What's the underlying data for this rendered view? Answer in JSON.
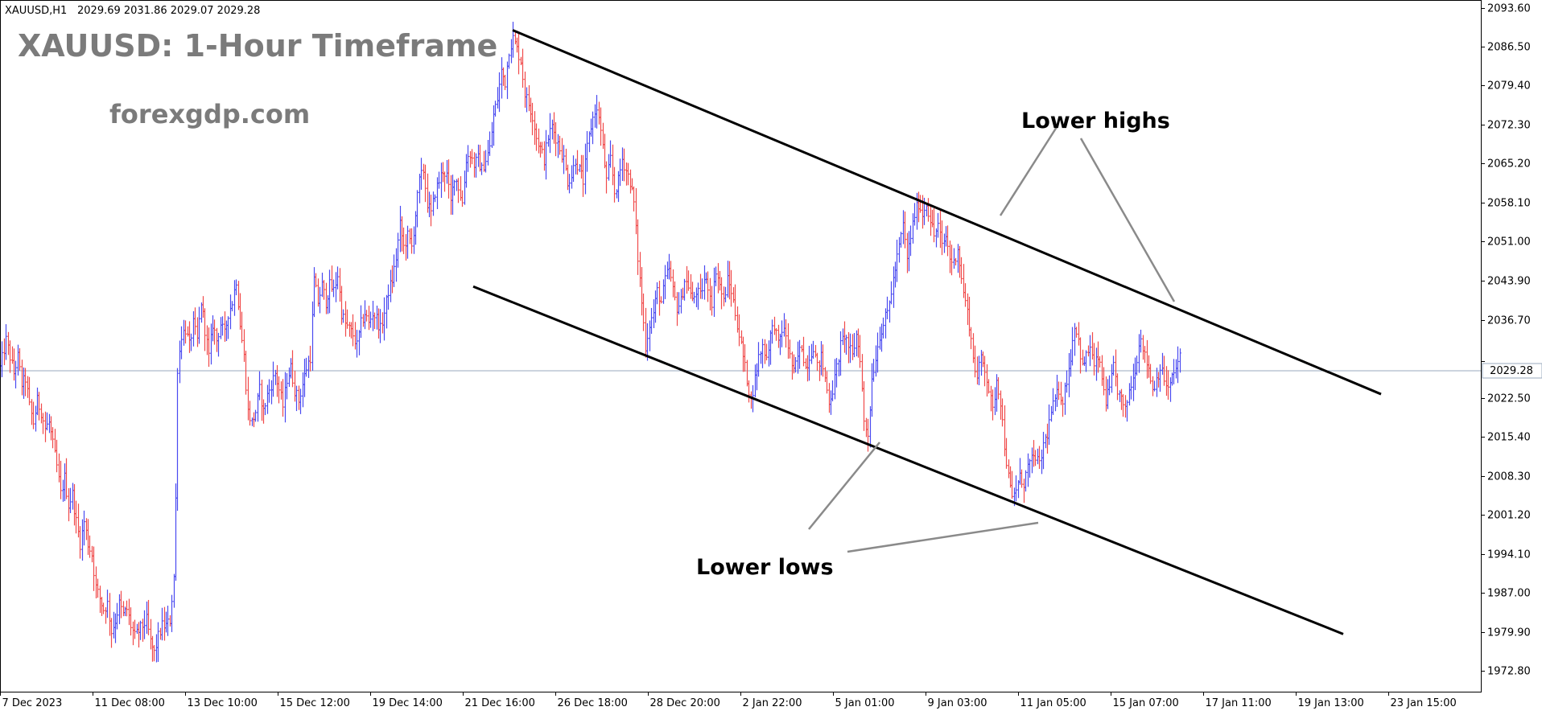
{
  "header": {
    "symbol": "XAUUSD,H1",
    "ohlc": "2029.69 2031.86 2029.07 2029.28"
  },
  "title": "XAUUSD: 1-Hour Timeframe",
  "website": "forexgdp.com",
  "annotations": {
    "lower_highs": "Lower highs",
    "lower_lows": "Lower lows"
  },
  "colors": {
    "bull": "#4a4af0",
    "bear": "#f04a4a",
    "grid": "#e6e6e6",
    "current_price_line": "#9aa9bd",
    "channel": "#000000",
    "annotation_arrow": "#8a8a8a"
  },
  "chart_data": {
    "type": "candlestick",
    "symbol": "XAUUSD",
    "timeframe": "H1",
    "current_price": 2029.28,
    "ylim": [
      1969.0,
      2095.0
    ],
    "y_ticks": [
      2093.6,
      2086.5,
      2079.4,
      2072.3,
      2065.2,
      2058.1,
      2051.0,
      2043.9,
      2036.7,
      2029.28,
      2022.5,
      2015.4,
      2008.3,
      2001.2,
      1994.1,
      1987.0,
      1979.9,
      1972.8
    ],
    "y_tick_labels": [
      "2093.60",
      "2086.50",
      "2079.40",
      "2072.30",
      "2065.20",
      "2058.10",
      "2051.00",
      "2043.90",
      "2036.70",
      "2029.28",
      "2022.50",
      "2015.40",
      "2008.30",
      "2001.20",
      "1994.10",
      "1987.00",
      "1979.90",
      "1972.80"
    ],
    "x_ticks": [
      "7 Dec 2023",
      "11 Dec 08:00",
      "13 Dec 10:00",
      "15 Dec 12:00",
      "19 Dec 14:00",
      "21 Dec 16:00",
      "26 Dec 18:00",
      "28 Dec 20:00",
      "2 Jan 22:00",
      "5 Jan 01:00",
      "9 Jan 03:00",
      "11 Jan 05:00",
      "15 Jan 07:00",
      "17 Jan 11:00",
      "19 Jan 13:00",
      "23 Jan 15:00"
    ],
    "path": [
      [
        0,
        2028
      ],
      [
        6,
        2033
      ],
      [
        10,
        2030
      ],
      [
        14,
        2027
      ],
      [
        18,
        2030
      ],
      [
        22,
        2025
      ],
      [
        26,
        2026
      ],
      [
        30,
        2021
      ],
      [
        34,
        2018
      ],
      [
        38,
        2022
      ],
      [
        42,
        2020
      ],
      [
        46,
        2017
      ],
      [
        50,
        2018
      ],
      [
        54,
        2014
      ],
      [
        58,
        2010
      ],
      [
        62,
        2005
      ],
      [
        66,
        2008
      ],
      [
        70,
        2003
      ],
      [
        74,
        2005
      ],
      [
        78,
        2000
      ],
      [
        82,
        1996
      ],
      [
        86,
        2000
      ],
      [
        90,
        1996
      ],
      [
        94,
        1994
      ],
      [
        98,
        1988
      ],
      [
        102,
        1986
      ],
      [
        106,
        1984
      ],
      [
        110,
        1985
      ],
      [
        114,
        1980
      ],
      [
        118,
        1982
      ],
      [
        122,
        1985
      ],
      [
        126,
        1983
      ],
      [
        130,
        1984
      ],
      [
        134,
        1981
      ],
      [
        138,
        1979
      ],
      [
        142,
        1980
      ],
      [
        146,
        1981
      ],
      [
        150,
        1982
      ],
      [
        154,
        1978
      ],
      [
        158,
        1976
      ],
      [
        162,
        1979
      ],
      [
        166,
        1981
      ],
      [
        170,
        1981
      ],
      [
        174,
        1982
      ],
      [
        178,
        1990
      ],
      [
        180,
        2004
      ],
      [
        182,
        2028
      ],
      [
        186,
        2034
      ],
      [
        190,
        2035
      ],
      [
        194,
        2032
      ],
      [
        198,
        2036
      ],
      [
        202,
        2033
      ],
      [
        206,
        2040
      ],
      [
        210,
        2035
      ],
      [
        214,
        2030
      ],
      [
        218,
        2036
      ],
      [
        222,
        2033
      ],
      [
        226,
        2036
      ],
      [
        230,
        2034
      ],
      [
        234,
        2038
      ],
      [
        238,
        2040
      ],
      [
        242,
        2044
      ],
      [
        246,
        2036
      ],
      [
        250,
        2030
      ],
      [
        254,
        2020
      ],
      [
        258,
        2018
      ],
      [
        262,
        2020
      ],
      [
        266,
        2024
      ],
      [
        270,
        2020
      ],
      [
        274,
        2023
      ],
      [
        278,
        2025
      ],
      [
        282,
        2027
      ],
      [
        286,
        2024
      ],
      [
        290,
        2021
      ],
      [
        294,
        2026
      ],
      [
        298,
        2028
      ],
      [
        302,
        2024
      ],
      [
        306,
        2022
      ],
      [
        310,
        2025
      ],
      [
        314,
        2028
      ],
      [
        318,
        2030
      ],
      [
        322,
        2044
      ],
      [
        326,
        2040
      ],
      [
        330,
        2043
      ],
      [
        334,
        2040
      ],
      [
        338,
        2043
      ],
      [
        342,
        2042
      ],
      [
        346,
        2045
      ],
      [
        350,
        2038
      ],
      [
        354,
        2036
      ],
      [
        358,
        2035
      ],
      [
        362,
        2034
      ],
      [
        366,
        2032
      ],
      [
        370,
        2036
      ],
      [
        374,
        2038
      ],
      [
        378,
        2036
      ],
      [
        382,
        2038
      ],
      [
        386,
        2037
      ],
      [
        390,
        2035
      ],
      [
        394,
        2038
      ],
      [
        398,
        2042
      ],
      [
        402,
        2044
      ],
      [
        406,
        2048
      ],
      [
        410,
        2054
      ],
      [
        414,
        2050
      ],
      [
        418,
        2052
      ],
      [
        422,
        2050
      ],
      [
        426,
        2056
      ],
      [
        430,
        2062
      ],
      [
        434,
        2064
      ],
      [
        438,
        2058
      ],
      [
        442,
        2056
      ],
      [
        446,
        2060
      ],
      [
        450,
        2062
      ],
      [
        454,
        2064
      ],
      [
        458,
        2063
      ],
      [
        462,
        2058
      ],
      [
        466,
        2063
      ],
      [
        470,
        2061
      ],
      [
        474,
        2058
      ],
      [
        478,
        2066
      ],
      [
        482,
        2067
      ],
      [
        486,
        2065
      ],
      [
        490,
        2066
      ],
      [
        494,
        2064
      ],
      [
        498,
        2066
      ],
      [
        502,
        2068
      ],
      [
        506,
        2074
      ],
      [
        510,
        2077
      ],
      [
        514,
        2082
      ],
      [
        518,
        2080
      ],
      [
        522,
        2086
      ],
      [
        526,
        2088
      ],
      [
        530,
        2086
      ],
      [
        534,
        2084
      ],
      [
        538,
        2078
      ],
      [
        542,
        2076
      ],
      [
        546,
        2074
      ],
      [
        550,
        2070
      ],
      [
        554,
        2068
      ],
      [
        558,
        2066
      ],
      [
        562,
        2070
      ],
      [
        566,
        2072
      ],
      [
        570,
        2070
      ],
      [
        574,
        2068
      ],
      [
        578,
        2066
      ],
      [
        582,
        2062
      ],
      [
        586,
        2063
      ],
      [
        590,
        2066
      ],
      [
        594,
        2064
      ],
      [
        598,
        2062
      ],
      [
        602,
        2068
      ],
      [
        606,
        2072
      ],
      [
        610,
        2075
      ],
      [
        614,
        2074
      ],
      [
        618,
        2068
      ],
      [
        622,
        2062
      ],
      [
        626,
        2066
      ],
      [
        630,
        2060
      ],
      [
        634,
        2062
      ],
      [
        638,
        2066
      ],
      [
        642,
        2064
      ],
      [
        646,
        2062
      ],
      [
        650,
        2058
      ],
      [
        654,
        2048
      ],
      [
        658,
        2040
      ],
      [
        662,
        2032
      ],
      [
        666,
        2036
      ],
      [
        670,
        2038
      ],
      [
        674,
        2042
      ],
      [
        678,
        2040
      ],
      [
        682,
        2044
      ],
      [
        686,
        2046
      ],
      [
        690,
        2042
      ],
      [
        694,
        2039
      ],
      [
        698,
        2040
      ],
      [
        702,
        2044
      ],
      [
        706,
        2043
      ],
      [
        710,
        2040
      ],
      [
        714,
        2042
      ],
      [
        718,
        2041
      ],
      [
        722,
        2044
      ],
      [
        726,
        2043
      ],
      [
        730,
        2040
      ],
      [
        734,
        2046
      ],
      [
        738,
        2043
      ],
      [
        742,
        2040
      ],
      [
        746,
        2044
      ],
      [
        750,
        2042
      ],
      [
        754,
        2038
      ],
      [
        758,
        2034
      ],
      [
        762,
        2030
      ],
      [
        766,
        2026
      ],
      [
        770,
        2022
      ],
      [
        774,
        2026
      ],
      [
        778,
        2030
      ],
      [
        782,
        2032
      ],
      [
        786,
        2030
      ],
      [
        790,
        2034
      ],
      [
        794,
        2036
      ],
      [
        798,
        2032
      ],
      [
        802,
        2035
      ],
      [
        806,
        2034
      ],
      [
        810,
        2030
      ],
      [
        814,
        2027
      ],
      [
        818,
        2030
      ],
      [
        822,
        2032
      ],
      [
        826,
        2028
      ],
      [
        830,
        2030
      ],
      [
        834,
        2032
      ],
      [
        838,
        2028
      ],
      [
        842,
        2030
      ],
      [
        846,
        2026
      ],
      [
        850,
        2022
      ],
      [
        854,
        2024
      ],
      [
        858,
        2028
      ],
      [
        862,
        2032
      ],
      [
        866,
        2034
      ],
      [
        870,
        2032
      ],
      [
        874,
        2030
      ],
      [
        878,
        2034
      ],
      [
        882,
        2030
      ],
      [
        886,
        2018
      ],
      [
        890,
        2016
      ],
      [
        894,
        2026
      ],
      [
        898,
        2030
      ],
      [
        902,
        2034
      ],
      [
        906,
        2036
      ],
      [
        910,
        2038
      ],
      [
        914,
        2042
      ],
      [
        918,
        2046
      ],
      [
        922,
        2050
      ],
      [
        926,
        2054
      ],
      [
        930,
        2048
      ],
      [
        934,
        2052
      ],
      [
        938,
        2056
      ],
      [
        942,
        2058
      ],
      [
        946,
        2056
      ],
      [
        950,
        2058
      ],
      [
        954,
        2055
      ],
      [
        958,
        2052
      ],
      [
        962,
        2054
      ],
      [
        966,
        2050
      ],
      [
        970,
        2052
      ],
      [
        974,
        2048
      ],
      [
        978,
        2047
      ],
      [
        982,
        2050
      ],
      [
        986,
        2044
      ],
      [
        990,
        2040
      ],
      [
        994,
        2036
      ],
      [
        998,
        2030
      ],
      [
        1002,
        2026
      ],
      [
        1006,
        2030
      ],
      [
        1010,
        2028
      ],
      [
        1014,
        2024
      ],
      [
        1018,
        2020
      ],
      [
        1022,
        2026
      ],
      [
        1026,
        2022
      ],
      [
        1030,
        2014
      ],
      [
        1034,
        2008
      ],
      [
        1038,
        2004
      ],
      [
        1042,
        2006
      ],
      [
        1046,
        2008
      ],
      [
        1050,
        2007
      ],
      [
        1054,
        2010
      ],
      [
        1058,
        2011
      ],
      [
        1062,
        2012
      ],
      [
        1066,
        2010
      ],
      [
        1070,
        2014
      ],
      [
        1074,
        2016
      ],
      [
        1078,
        2020
      ],
      [
        1082,
        2022
      ],
      [
        1086,
        2024
      ],
      [
        1090,
        2022
      ],
      [
        1094,
        2026
      ],
      [
        1098,
        2030
      ],
      [
        1102,
        2036
      ],
      [
        1106,
        2033
      ],
      [
        1110,
        2028
      ],
      [
        1114,
        2030
      ],
      [
        1118,
        2032
      ],
      [
        1122,
        2028
      ],
      [
        1126,
        2030
      ],
      [
        1130,
        2026
      ],
      [
        1134,
        2022
      ],
      [
        1138,
        2024
      ],
      [
        1142,
        2028
      ],
      [
        1146,
        2024
      ],
      [
        1150,
        2022
      ],
      [
        1154,
        2020
      ],
      [
        1158,
        2024
      ],
      [
        1162,
        2026
      ],
      [
        1166,
        2030
      ],
      [
        1170,
        2034
      ],
      [
        1174,
        2030
      ],
      [
        1178,
        2028
      ],
      [
        1182,
        2024
      ],
      [
        1186,
        2026
      ],
      [
        1190,
        2028
      ],
      [
        1194,
        2026
      ],
      [
        1198,
        2024
      ],
      [
        1202,
        2026
      ],
      [
        1206,
        2028
      ],
      [
        1210,
        2030
      ],
      [
        1211,
        2029.28
      ]
    ],
    "channel": {
      "upper": {
        "start": {
          "x": "26 Dec",
          "y": 2089.5
        },
        "end": {
          "x": "after 23 Jan",
          "y": 2023.2
        }
      },
      "lower": {
        "start": {
          "x": "22 Dec",
          "y": 2042.8
        },
        "end": {
          "x": "after 23 Jan",
          "y": 1979.5
        }
      }
    }
  }
}
